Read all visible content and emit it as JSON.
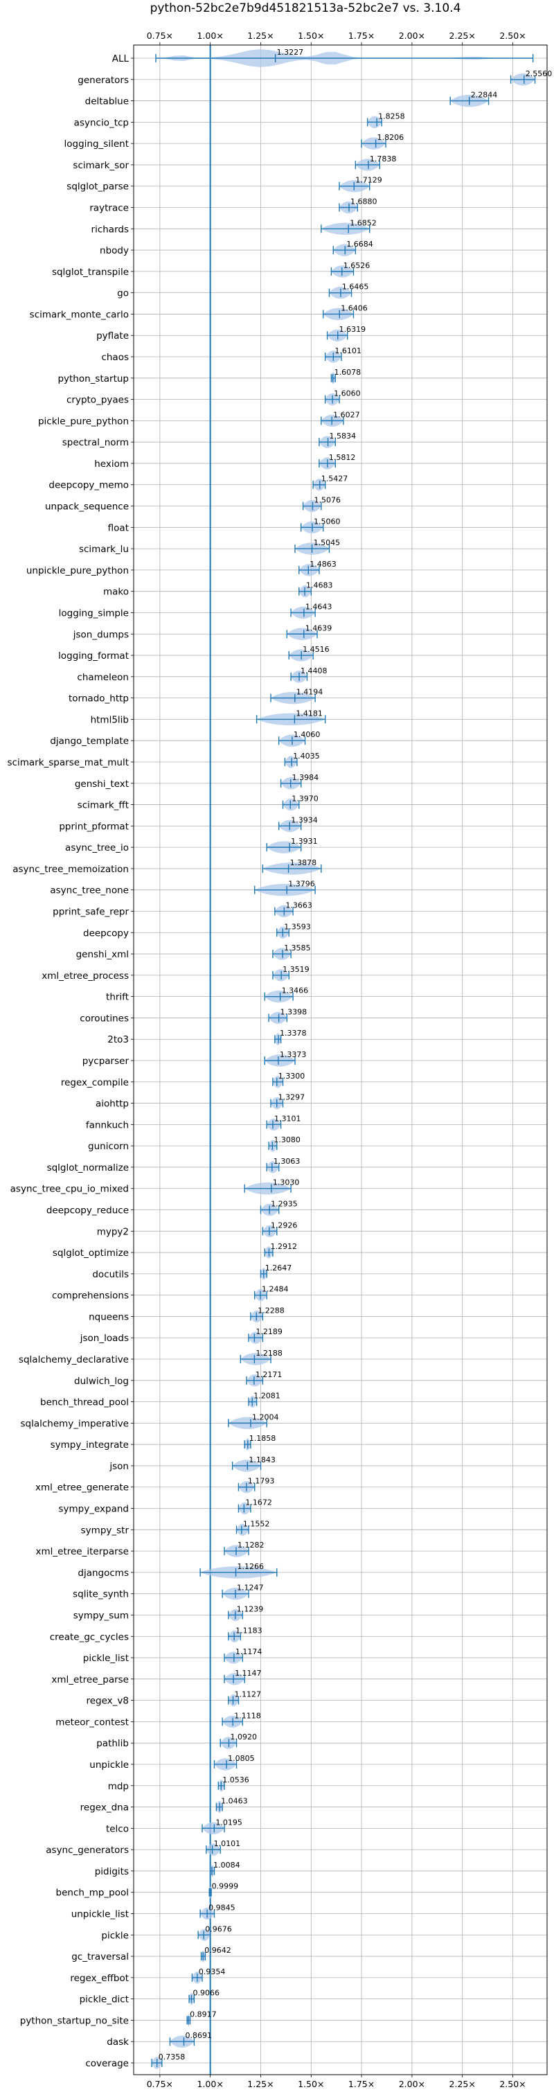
{
  "chart_data": {
    "type": "violin",
    "title": "python-52bc2e7b9d451821513a-52bc2e7 vs. 3.10.4",
    "xlabel": "",
    "ylabel": "",
    "xlim": [
      0.62,
      2.67
    ],
    "xticks": [
      0.75,
      1.0,
      1.25,
      1.5,
      1.75,
      2.0,
      2.25,
      2.5
    ],
    "xtick_labels": [
      "0.75×",
      "1.00×",
      "1.25×",
      "1.50×",
      "1.75×",
      "2.00×",
      "2.25×",
      "2.50×"
    ],
    "reference_line": 1.0,
    "grid": true,
    "color": "#1f77b4",
    "fill_color": "#aec7e8",
    "benchmarks": [
      {
        "name": "ALL",
        "value": 1.3227,
        "label": "1.3227",
        "min": 0.73,
        "max": 2.6
      },
      {
        "name": "generators",
        "value": 2.556,
        "label": "2.5560",
        "min": 2.49,
        "max": 2.61
      },
      {
        "name": "deltablue",
        "value": 2.2844,
        "label": "2.2844",
        "min": 2.19,
        "max": 2.38
      },
      {
        "name": "asyncio_tcp",
        "value": 1.8258,
        "label": "1.8258",
        "min": 1.78,
        "max": 1.85
      },
      {
        "name": "logging_silent",
        "value": 1.8206,
        "label": "1.8206",
        "min": 1.75,
        "max": 1.87
      },
      {
        "name": "scimark_sor",
        "value": 1.7838,
        "label": "1.7838",
        "min": 1.72,
        "max": 1.84
      },
      {
        "name": "sqlglot_parse",
        "value": 1.7129,
        "label": "1.7129",
        "min": 1.64,
        "max": 1.79
      },
      {
        "name": "raytrace",
        "value": 1.688,
        "label": "1.6880",
        "min": 1.64,
        "max": 1.73
      },
      {
        "name": "richards",
        "value": 1.6852,
        "label": "1.6852",
        "min": 1.55,
        "max": 1.79
      },
      {
        "name": "nbody",
        "value": 1.6684,
        "label": "1.6684",
        "min": 1.61,
        "max": 1.72
      },
      {
        "name": "sqlglot_transpile",
        "value": 1.6526,
        "label": "1.6526",
        "min": 1.6,
        "max": 1.71
      },
      {
        "name": "go",
        "value": 1.6465,
        "label": "1.6465",
        "min": 1.59,
        "max": 1.7
      },
      {
        "name": "scimark_monte_carlo",
        "value": 1.6406,
        "label": "1.6406",
        "min": 1.56,
        "max": 1.71
      },
      {
        "name": "pyflate",
        "value": 1.6319,
        "label": "1.6319",
        "min": 1.58,
        "max": 1.68
      },
      {
        "name": "chaos",
        "value": 1.6101,
        "label": "1.6101",
        "min": 1.57,
        "max": 1.65
      },
      {
        "name": "python_startup",
        "value": 1.6078,
        "label": "1.6078",
        "min": 1.6,
        "max": 1.62
      },
      {
        "name": "crypto_pyaes",
        "value": 1.606,
        "label": "1.6060",
        "min": 1.57,
        "max": 1.64
      },
      {
        "name": "pickle_pure_python",
        "value": 1.6027,
        "label": "1.6027",
        "min": 1.55,
        "max": 1.66
      },
      {
        "name": "spectral_norm",
        "value": 1.5834,
        "label": "1.5834",
        "min": 1.54,
        "max": 1.62
      },
      {
        "name": "hexiom",
        "value": 1.5812,
        "label": "1.5812",
        "min": 1.54,
        "max": 1.62
      },
      {
        "name": "deepcopy_memo",
        "value": 1.5427,
        "label": "1.5427",
        "min": 1.51,
        "max": 1.57
      },
      {
        "name": "unpack_sequence",
        "value": 1.5076,
        "label": "1.5076",
        "min": 1.46,
        "max": 1.55
      },
      {
        "name": "float",
        "value": 1.506,
        "label": "1.5060",
        "min": 1.45,
        "max": 1.56
      },
      {
        "name": "scimark_lu",
        "value": 1.5045,
        "label": "1.5045",
        "min": 1.42,
        "max": 1.59
      },
      {
        "name": "unpickle_pure_python",
        "value": 1.4863,
        "label": "1.4863",
        "min": 1.44,
        "max": 1.54
      },
      {
        "name": "mako",
        "value": 1.4683,
        "label": "1.4683",
        "min": 1.44,
        "max": 1.5
      },
      {
        "name": "logging_simple",
        "value": 1.4643,
        "label": "1.4643",
        "min": 1.4,
        "max": 1.52
      },
      {
        "name": "json_dumps",
        "value": 1.4639,
        "label": "1.4639",
        "min": 1.38,
        "max": 1.53
      },
      {
        "name": "logging_format",
        "value": 1.4516,
        "label": "1.4516",
        "min": 1.39,
        "max": 1.51
      },
      {
        "name": "chameleon",
        "value": 1.4408,
        "label": "1.4408",
        "min": 1.4,
        "max": 1.48
      },
      {
        "name": "tornado_http",
        "value": 1.4194,
        "label": "1.4194",
        "min": 1.3,
        "max": 1.52
      },
      {
        "name": "html5lib",
        "value": 1.4181,
        "label": "1.4181",
        "min": 1.23,
        "max": 1.57
      },
      {
        "name": "django_template",
        "value": 1.406,
        "label": "1.4060",
        "min": 1.34,
        "max": 1.47
      },
      {
        "name": "scimark_sparse_mat_mult",
        "value": 1.4035,
        "label": "1.4035",
        "min": 1.37,
        "max": 1.43
      },
      {
        "name": "genshi_text",
        "value": 1.3984,
        "label": "1.3984",
        "min": 1.35,
        "max": 1.45
      },
      {
        "name": "scimark_fft",
        "value": 1.397,
        "label": "1.3970",
        "min": 1.36,
        "max": 1.44
      },
      {
        "name": "pprint_pformat",
        "value": 1.3934,
        "label": "1.3934",
        "min": 1.34,
        "max": 1.45
      },
      {
        "name": "async_tree_io",
        "value": 1.3931,
        "label": "1.3931",
        "min": 1.28,
        "max": 1.45
      },
      {
        "name": "async_tree_memoization",
        "value": 1.3878,
        "label": "1.3878",
        "min": 1.26,
        "max": 1.55
      },
      {
        "name": "async_tree_none",
        "value": 1.3796,
        "label": "1.3796",
        "min": 1.22,
        "max": 1.52
      },
      {
        "name": "pprint_safe_repr",
        "value": 1.3663,
        "label": "1.3663",
        "min": 1.32,
        "max": 1.41
      },
      {
        "name": "deepcopy",
        "value": 1.3593,
        "label": "1.3593",
        "min": 1.33,
        "max": 1.39
      },
      {
        "name": "genshi_xml",
        "value": 1.3585,
        "label": "1.3585",
        "min": 1.31,
        "max": 1.4
      },
      {
        "name": "xml_etree_process",
        "value": 1.3519,
        "label": "1.3519",
        "min": 1.31,
        "max": 1.39
      },
      {
        "name": "thrift",
        "value": 1.3466,
        "label": "1.3466",
        "min": 1.27,
        "max": 1.41
      },
      {
        "name": "coroutines",
        "value": 1.3398,
        "label": "1.3398",
        "min": 1.29,
        "max": 1.38
      },
      {
        "name": "2to3",
        "value": 1.3378,
        "label": "1.3378",
        "min": 1.32,
        "max": 1.35
      },
      {
        "name": "pycparser",
        "value": 1.3373,
        "label": "1.3373",
        "min": 1.27,
        "max": 1.42
      },
      {
        "name": "regex_compile",
        "value": 1.33,
        "label": "1.3300",
        "min": 1.31,
        "max": 1.36
      },
      {
        "name": "aiohttp",
        "value": 1.3297,
        "label": "1.3297",
        "min": 1.3,
        "max": 1.36
      },
      {
        "name": "fannkuch",
        "value": 1.3101,
        "label": "1.3101",
        "min": 1.28,
        "max": 1.35
      },
      {
        "name": "gunicorn",
        "value": 1.308,
        "label": "1.3080",
        "min": 1.29,
        "max": 1.33
      },
      {
        "name": "sqlglot_normalize",
        "value": 1.3063,
        "label": "1.3063",
        "min": 1.28,
        "max": 1.34
      },
      {
        "name": "async_tree_cpu_io_mixed",
        "value": 1.303,
        "label": "1.3030",
        "min": 1.17,
        "max": 1.4
      },
      {
        "name": "deepcopy_reduce",
        "value": 1.2935,
        "label": "1.2935",
        "min": 1.25,
        "max": 1.34
      },
      {
        "name": "mypy2",
        "value": 1.2926,
        "label": "1.2926",
        "min": 1.26,
        "max": 1.33
      },
      {
        "name": "sqlglot_optimize",
        "value": 1.2912,
        "label": "1.2912",
        "min": 1.27,
        "max": 1.31
      },
      {
        "name": "docutils",
        "value": 1.2647,
        "label": "1.2647",
        "min": 1.25,
        "max": 1.28
      },
      {
        "name": "comprehensions",
        "value": 1.2484,
        "label": "1.2484",
        "min": 1.22,
        "max": 1.28
      },
      {
        "name": "nqueens",
        "value": 1.2288,
        "label": "1.2288",
        "min": 1.2,
        "max": 1.26
      },
      {
        "name": "json_loads",
        "value": 1.2189,
        "label": "1.2189",
        "min": 1.19,
        "max": 1.26
      },
      {
        "name": "sqlalchemy_declarative",
        "value": 1.2188,
        "label": "1.2188",
        "min": 1.15,
        "max": 1.3
      },
      {
        "name": "dulwich_log",
        "value": 1.2171,
        "label": "1.2171",
        "min": 1.18,
        "max": 1.26
      },
      {
        "name": "bench_thread_pool",
        "value": 1.2081,
        "label": "1.2081",
        "min": 1.19,
        "max": 1.23
      },
      {
        "name": "sqlalchemy_imperative",
        "value": 1.2004,
        "label": "1.2004",
        "min": 1.09,
        "max": 1.28
      },
      {
        "name": "sympy_integrate",
        "value": 1.1858,
        "label": "1.1858",
        "min": 1.17,
        "max": 1.2
      },
      {
        "name": "json",
        "value": 1.1843,
        "label": "1.1843",
        "min": 1.11,
        "max": 1.25
      },
      {
        "name": "xml_etree_generate",
        "value": 1.1793,
        "label": "1.1793",
        "min": 1.14,
        "max": 1.22
      },
      {
        "name": "sympy_expand",
        "value": 1.1672,
        "label": "1.1672",
        "min": 1.14,
        "max": 1.2
      },
      {
        "name": "sympy_str",
        "value": 1.1552,
        "label": "1.1552",
        "min": 1.13,
        "max": 1.19
      },
      {
        "name": "xml_etree_iterparse",
        "value": 1.1282,
        "label": "1.1282",
        "min": 1.07,
        "max": 1.19
      },
      {
        "name": "djangocms",
        "value": 1.1266,
        "label": "1.1266",
        "min": 0.95,
        "max": 1.33
      },
      {
        "name": "sqlite_synth",
        "value": 1.1247,
        "label": "1.1247",
        "min": 1.06,
        "max": 1.19
      },
      {
        "name": "sympy_sum",
        "value": 1.1239,
        "label": "1.1239",
        "min": 1.09,
        "max": 1.16
      },
      {
        "name": "create_gc_cycles",
        "value": 1.1183,
        "label": "1.1183",
        "min": 1.09,
        "max": 1.15
      },
      {
        "name": "pickle_list",
        "value": 1.1174,
        "label": "1.1174",
        "min": 1.07,
        "max": 1.16
      },
      {
        "name": "xml_etree_parse",
        "value": 1.1147,
        "label": "1.1147",
        "min": 1.07,
        "max": 1.17
      },
      {
        "name": "regex_v8",
        "value": 1.1127,
        "label": "1.1127",
        "min": 1.09,
        "max": 1.14
      },
      {
        "name": "meteor_contest",
        "value": 1.1118,
        "label": "1.1118",
        "min": 1.06,
        "max": 1.16
      },
      {
        "name": "pathlib",
        "value": 1.092,
        "label": "1.0920",
        "min": 1.05,
        "max": 1.13
      },
      {
        "name": "unpickle",
        "value": 1.0805,
        "label": "1.0805",
        "min": 1.02,
        "max": 1.13
      },
      {
        "name": "mdp",
        "value": 1.0536,
        "label": "1.0536",
        "min": 1.04,
        "max": 1.07
      },
      {
        "name": "regex_dna",
        "value": 1.0463,
        "label": "1.0463",
        "min": 1.03,
        "max": 1.06
      },
      {
        "name": "telco",
        "value": 1.0195,
        "label": "1.0195",
        "min": 0.96,
        "max": 1.07
      },
      {
        "name": "async_generators",
        "value": 1.0101,
        "label": "1.0101",
        "min": 0.98,
        "max": 1.05
      },
      {
        "name": "pidigits",
        "value": 1.0084,
        "label": "1.0084",
        "min": 1.0,
        "max": 1.02
      },
      {
        "name": "bench_mp_pool",
        "value": 0.9999,
        "label": "0.9999",
        "min": 0.995,
        "max": 1.005
      },
      {
        "name": "unpickle_list",
        "value": 0.9845,
        "label": "0.9845",
        "min": 0.95,
        "max": 1.02
      },
      {
        "name": "pickle",
        "value": 0.9676,
        "label": "0.9676",
        "min": 0.94,
        "max": 1.0
      },
      {
        "name": "gc_traversal",
        "value": 0.9642,
        "label": "0.9642",
        "min": 0.955,
        "max": 0.975
      },
      {
        "name": "regex_effbot",
        "value": 0.9354,
        "label": "0.9354",
        "min": 0.91,
        "max": 0.96
      },
      {
        "name": "pickle_dict",
        "value": 0.9066,
        "label": "0.9066",
        "min": 0.895,
        "max": 0.92
      },
      {
        "name": "python_startup_no_site",
        "value": 0.8917,
        "label": "0.8917",
        "min": 0.885,
        "max": 0.9
      },
      {
        "name": "dask",
        "value": 0.8691,
        "label": "0.8691",
        "min": 0.8,
        "max": 0.92
      },
      {
        "name": "coverage",
        "value": 0.7358,
        "label": "0.7358",
        "min": 0.71,
        "max": 0.76
      }
    ]
  }
}
